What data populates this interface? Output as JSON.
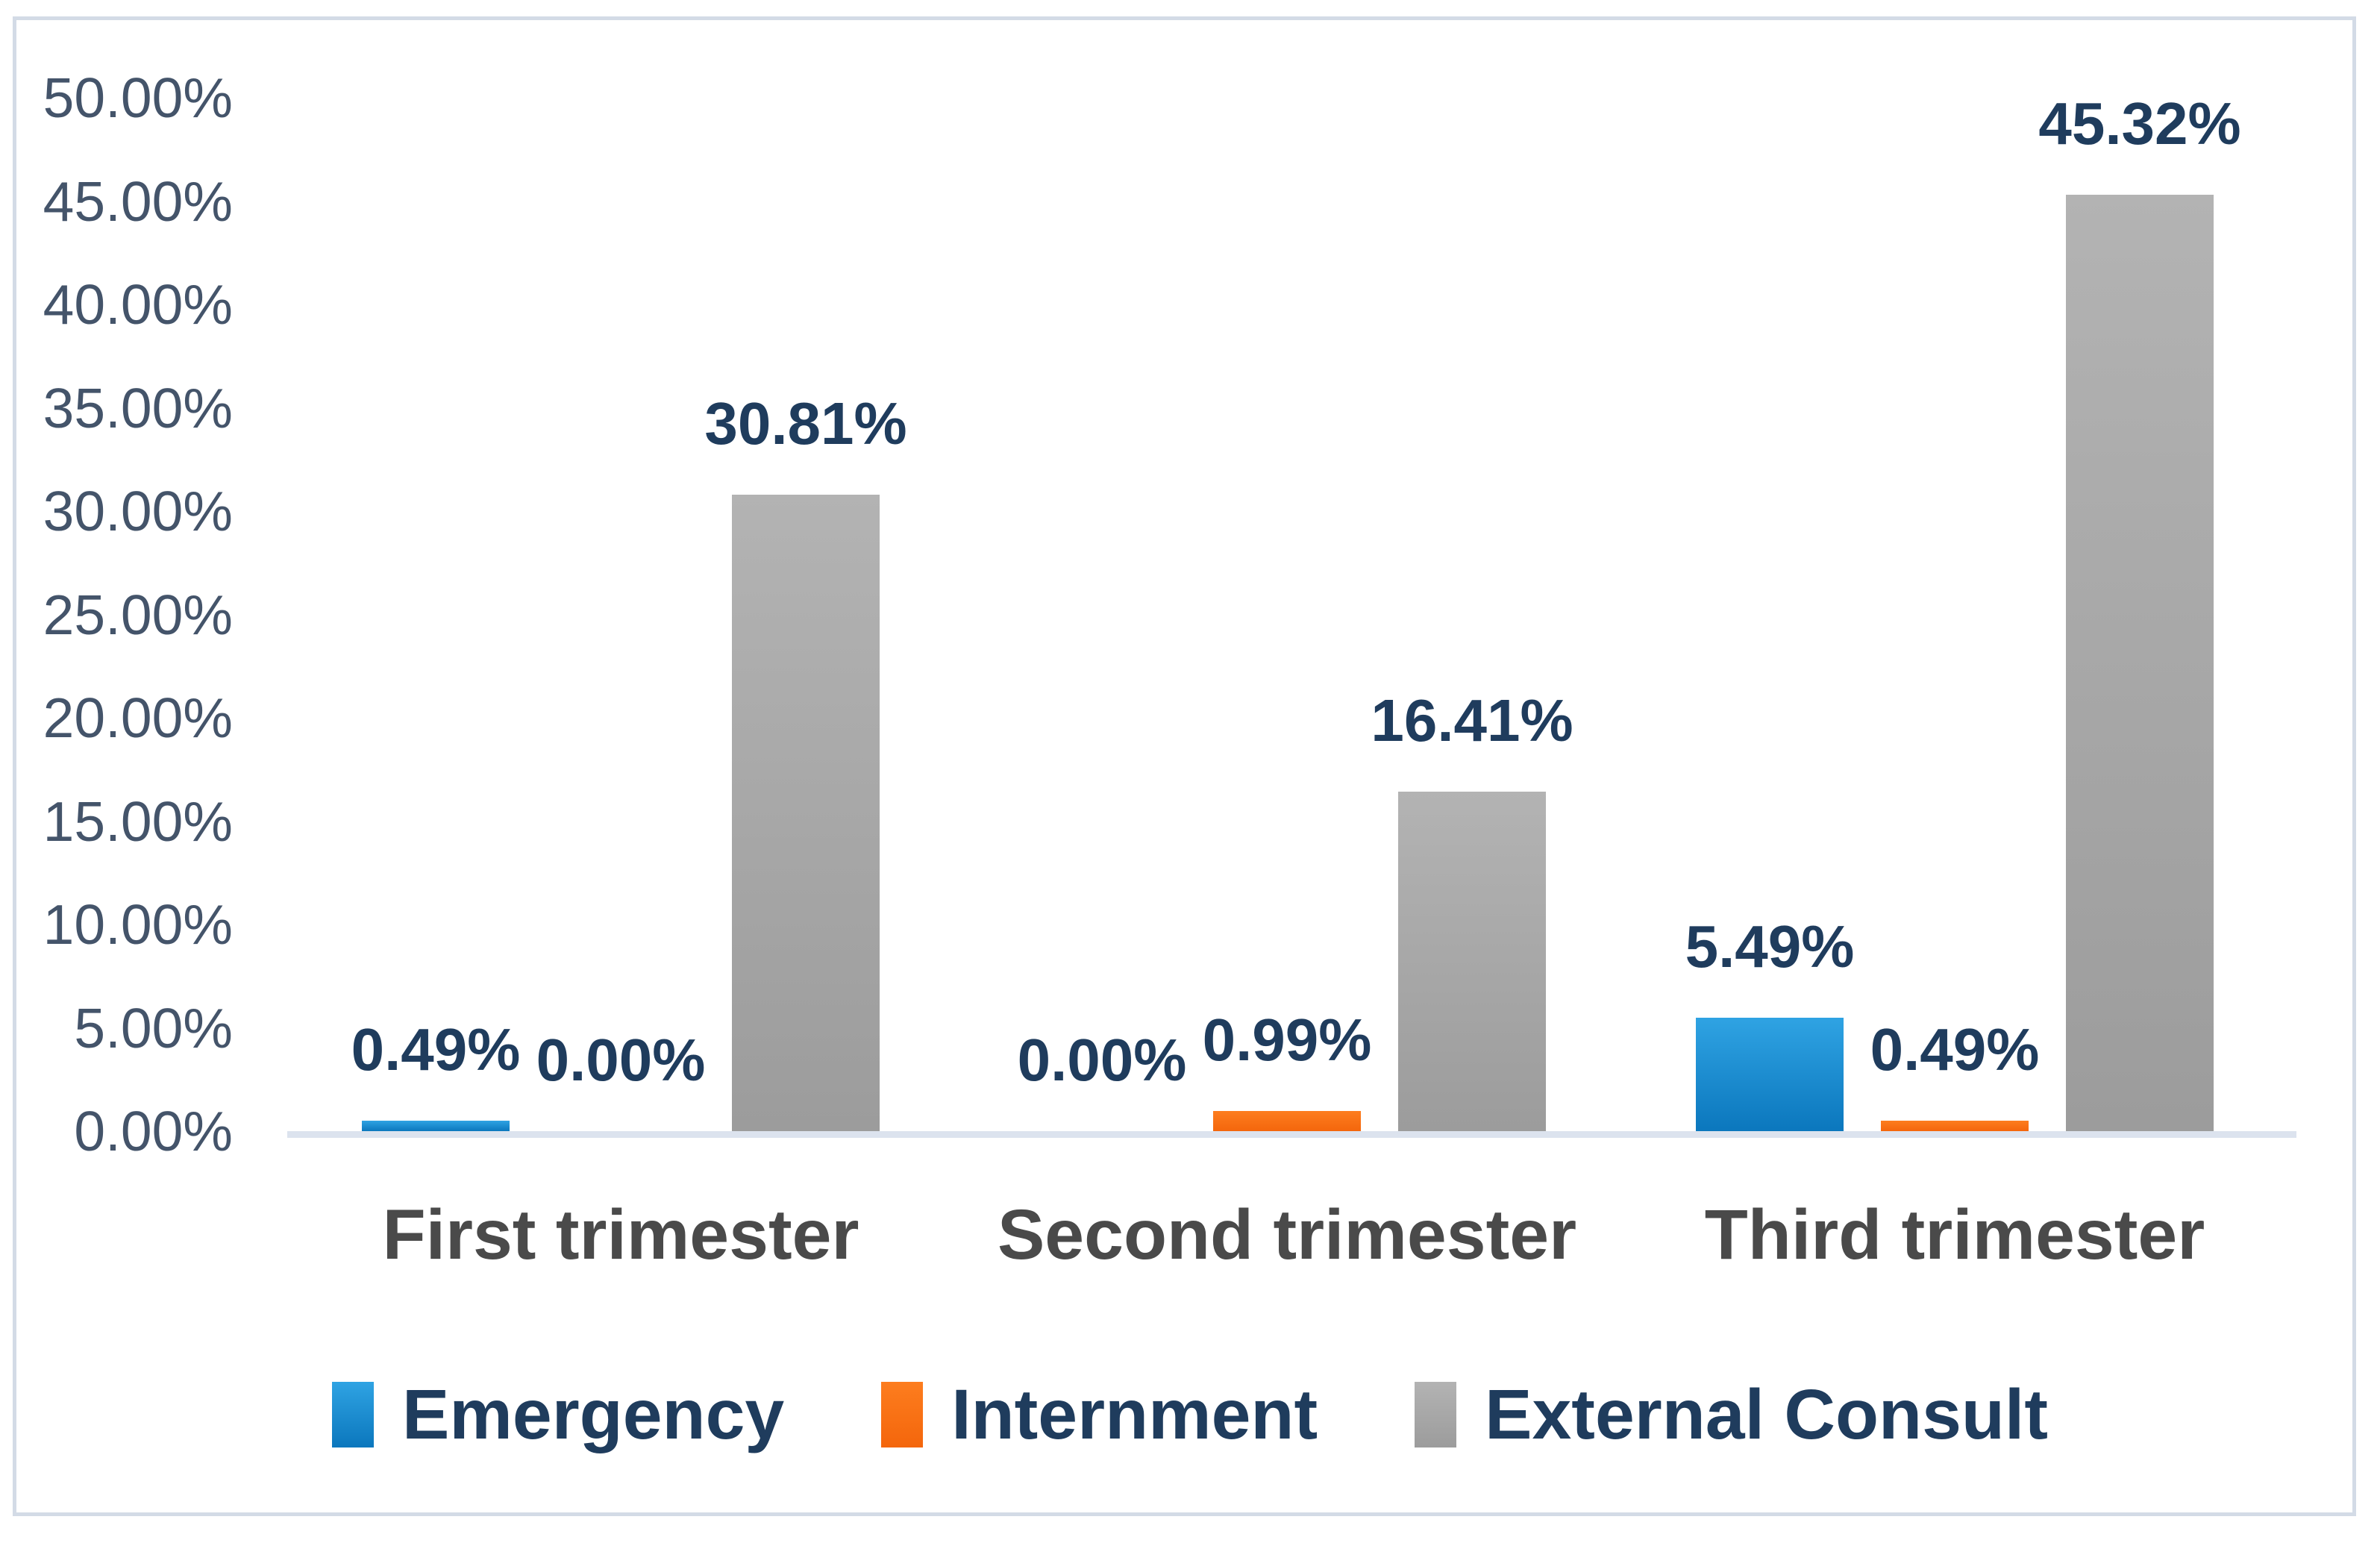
{
  "chart_data": {
    "type": "bar",
    "title": "",
    "xlabel": "",
    "ylabel": "",
    "categories": [
      "First trimester",
      "Second trimester",
      "Third trimester"
    ],
    "series": [
      {
        "name": "Emergency",
        "values": [
          0.49,
          0,
          5.49
        ],
        "data_labels": [
          "0.49%",
          "0.00%",
          "5.49%"
        ],
        "color_top": "#2FA3E3",
        "color_bottom": "#0B77BD"
      },
      {
        "name": "Internment",
        "values": [
          0,
          0.99,
          0.49
        ],
        "data_labels": [
          "0.00%",
          "0.99%",
          "0.49%"
        ],
        "color_top": "#FD7D1E",
        "color_bottom": "#F4660C"
      },
      {
        "name": "External Consult",
        "values": [
          30.81,
          16.41,
          45.32
        ],
        "data_labels": [
          "30.81%",
          "16.41%",
          "45.32%"
        ],
        "color_top": "#B3B3B3",
        "color_bottom": "#9C9C9C"
      }
    ],
    "y_axis": {
      "min": 0,
      "max": 50,
      "step": 5,
      "tick_labels": [
        "0.00%",
        "5.00%",
        "10.00%",
        "15.00%",
        "20.00%",
        "25.00%",
        "30.00%",
        "35.00%",
        "40.00%",
        "45.00%",
        "50.00%"
      ]
    },
    "grid": false,
    "legend": {
      "position": "bottom",
      "items": [
        "Emergency",
        "Internment",
        "External Consult"
      ]
    },
    "colors": {
      "tick_label": "#44546A",
      "data_label": "#1F3C5D",
      "category_label": "#4A4A4A",
      "legend_label": "#1F3C5D",
      "axis_line": "#DCE3EE",
      "frame_border": "#D3DBE6",
      "background": "#FFFFFF"
    }
  }
}
